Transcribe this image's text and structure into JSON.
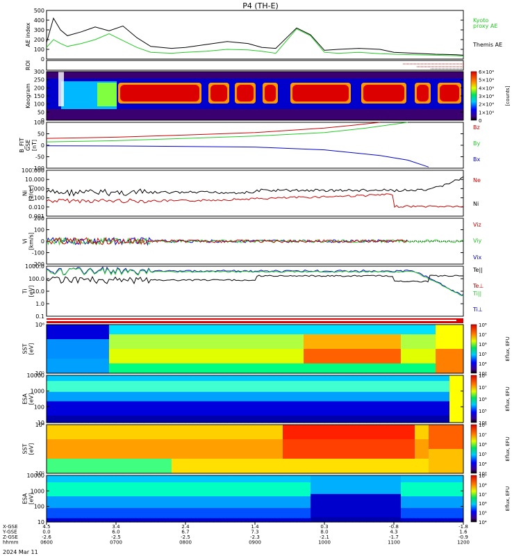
{
  "title": "P4 (TH-E)",
  "date": "2024 Mar 11",
  "chart_data": [
    {
      "type": "line",
      "ylabel": "AE index",
      "ylim": [
        0,
        500
      ],
      "yticks": [
        "500",
        "400",
        "300",
        "200",
        "100",
        "0"
      ],
      "series": [
        {
          "name": "Themis AE",
          "color": "#000000",
          "x": [
            6.0,
            6.1,
            6.2,
            6.3,
            6.5,
            6.7,
            6.9,
            7.1,
            7.3,
            7.5,
            7.8,
            8.0,
            8.3,
            8.6,
            8.9,
            9.1,
            9.3,
            9.6,
            9.8,
            10.0,
            10.2,
            10.5,
            10.8,
            11.0,
            11.3,
            11.6,
            11.9,
            12.0
          ],
          "values": [
            170,
            420,
            300,
            240,
            280,
            330,
            290,
            340,
            220,
            130,
            110,
            120,
            150,
            180,
            160,
            120,
            110,
            320,
            250,
            90,
            100,
            110,
            100,
            70,
            60,
            50,
            45,
            40
          ]
        },
        {
          "name": "Kyoto proxy AE",
          "color": "#22cc22",
          "x": [
            6.0,
            6.1,
            6.2,
            6.3,
            6.5,
            6.7,
            6.9,
            7.1,
            7.3,
            7.5,
            7.8,
            8.0,
            8.3,
            8.6,
            8.9,
            9.1,
            9.3,
            9.6,
            9.8,
            10.0,
            10.2,
            10.5,
            10.8,
            11.0,
            11.3,
            11.6,
            11.9,
            12.0
          ],
          "values": [
            120,
            200,
            160,
            130,
            160,
            200,
            260,
            190,
            120,
            70,
            60,
            70,
            80,
            100,
            95,
            80,
            60,
            310,
            240,
            70,
            60,
            70,
            55,
            50,
            45,
            40,
            35,
            30
          ]
        }
      ],
      "right_labels": [
        {
          "text": "Kyoto",
          "color": "#22cc22"
        },
        {
          "text": "proxy AE",
          "color": "#22cc22"
        },
        {
          "text": "Themis AE",
          "color": "#000000"
        }
      ]
    },
    {
      "type": "line",
      "ylabel": "ROI",
      "note": "dotted red/grey segments near end"
    },
    {
      "type": "heatmap",
      "ylabel": "Keogram",
      "ylim": [
        0,
        300
      ],
      "yticks": [
        "300",
        "250",
        "200",
        "150",
        "100",
        "50",
        "0"
      ],
      "colorbar_ticks": [
        "6×10⁴",
        "5×10⁴",
        "4×10⁴",
        "3×10⁴",
        "2×10⁴",
        "1×10⁴",
        "0"
      ],
      "colorbar_label": "[counts]"
    },
    {
      "type": "line",
      "ylabel": "B_FIT [nT]",
      "ylabel_lines": [
        "B_FIT",
        "GSE",
        "[nT]"
      ],
      "ylim": [
        -100,
        100
      ],
      "yticks": [
        "100",
        "50",
        "0",
        "-50",
        "-100"
      ],
      "series": [
        {
          "name": "Bz",
          "color": "#cc0000",
          "x": [
            6.0,
            7.0,
            8.0,
            9.0,
            10.0,
            10.5,
            10.8
          ],
          "values": [
            30,
            35,
            45,
            55,
            75,
            90,
            100
          ]
        },
        {
          "name": "By",
          "color": "#22cc22",
          "x": [
            6.0,
            7.0,
            8.0,
            9.0,
            10.0,
            10.6,
            11.2
          ],
          "values": [
            15,
            20,
            30,
            40,
            55,
            75,
            100
          ]
        },
        {
          "name": "Bx",
          "color": "#0000cc",
          "x": [
            6.0,
            7.0,
            8.0,
            9.0,
            10.0,
            10.8,
            11.2,
            11.5
          ],
          "values": [
            -2,
            -3,
            -5,
            -8,
            -20,
            -45,
            -65,
            -95
          ]
        }
      ]
    },
    {
      "type": "line",
      "ylabel": "Ni [1/cc]",
      "ylabel_lines": [
        "Ni",
        "[1/cc]"
      ],
      "ylog": true,
      "yticks": [
        "100.000",
        "10.000",
        "1.000",
        "0.100",
        "0.010",
        "0.001"
      ],
      "series": [
        {
          "name": "Ne",
          "color": "#cc0000"
        },
        {
          "name": "Ni",
          "color": "#000000"
        }
      ]
    },
    {
      "type": "line",
      "ylabel": "Vi [km/s]",
      "ylabel_lines": [
        "Vi",
        "[km/s]"
      ],
      "ylim": [
        -200,
        200
      ],
      "yticks": [
        "200",
        "100",
        "0",
        "-100",
        "-200"
      ],
      "series": [
        {
          "name": "Viz",
          "color": "#cc0000"
        },
        {
          "name": "Viy",
          "color": "#22cc22"
        },
        {
          "name": "Vix",
          "color": "#0000cc"
        }
      ]
    },
    {
      "type": "line",
      "ylabel": "Ti [eV]",
      "ylabel_lines": [
        "Ti",
        "[eV]"
      ],
      "ylog": true,
      "yticks": [
        "1000.0",
        "100.0",
        "10.0",
        "1.0",
        "0.1"
      ],
      "series": [
        {
          "name": "Te||",
          "color": "#000000"
        },
        {
          "name": "Te⊥",
          "color": "#cc0000"
        },
        {
          "name": "Ti||",
          "color": "#22cc22"
        },
        {
          "name": "Ti⊥",
          "color": "#0000cc"
        }
      ]
    },
    {
      "type": "heatmap",
      "ylabel": "SST [eV]",
      "ylabel_lines": [
        "SST",
        "[eV]"
      ],
      "yticks": [
        "10⁶",
        "10⁵"
      ],
      "colorbar_ticks": [
        "10⁸",
        "10⁷",
        "10⁶",
        "10⁵",
        "10⁴",
        "10³"
      ],
      "colorbar_label": "Eflux, EFU"
    },
    {
      "type": "heatmap",
      "ylabel": "ESA [eV]",
      "ylabel_lines": [
        "ESA",
        "[eV]"
      ],
      "yticks": [
        "10000",
        "1000",
        "100",
        "10"
      ],
      "colorbar_ticks": [
        "10⁸",
        "10⁷",
        "10⁶",
        "10⁵",
        "10⁴"
      ],
      "colorbar_label": "Eflux, EFU"
    },
    {
      "type": "heatmap",
      "ylabel": "SST [eV]",
      "ylabel_lines": [
        "SST",
        "[eV]"
      ],
      "yticks": [
        "10⁶",
        "10⁵"
      ],
      "colorbar_ticks": [
        "10⁸",
        "10⁷",
        "10⁶",
        "10⁵",
        "10⁴",
        "10³"
      ],
      "colorbar_label": "Eflux, EFU"
    },
    {
      "type": "heatmap",
      "ylabel": "ESA [eV]",
      "ylabel_lines": [
        "ESA",
        "[eV]"
      ],
      "yticks": [
        "10000",
        "1000",
        "100",
        "10"
      ],
      "colorbar_ticks": [
        "10⁹",
        "10⁸",
        "10⁷",
        "10⁶",
        "10⁵",
        "10⁴"
      ],
      "colorbar_label": "Eflux, EFU"
    }
  ],
  "xaxis": {
    "row_labels": [
      "X-GSE",
      "Y-GSE",
      "Z-GSE",
      "hhmm"
    ],
    "ticks": [
      {
        "x": "4.5",
        "y": "0.0",
        "z": "-2.6",
        "t": "0600"
      },
      {
        "x": "3.4",
        "y": "6.0",
        "z": "-2.5",
        "t": "0700"
      },
      {
        "x": "2.4",
        "y": "6.7",
        "z": "-2.5",
        "t": "0800"
      },
      {
        "x": "1.4",
        "y": "7.3",
        "z": "-2.3",
        "t": "0900"
      },
      {
        "x": "0.3",
        "y": "8.0",
        "z": "-2.1",
        "t": "1000"
      },
      {
        "x": "-0.8",
        "y": "4.3",
        "z": "-1.7",
        "t": "1100"
      },
      {
        "x": "-1.8",
        "y": "1.6",
        "z": "-0.9",
        "t": "1200"
      }
    ]
  }
}
